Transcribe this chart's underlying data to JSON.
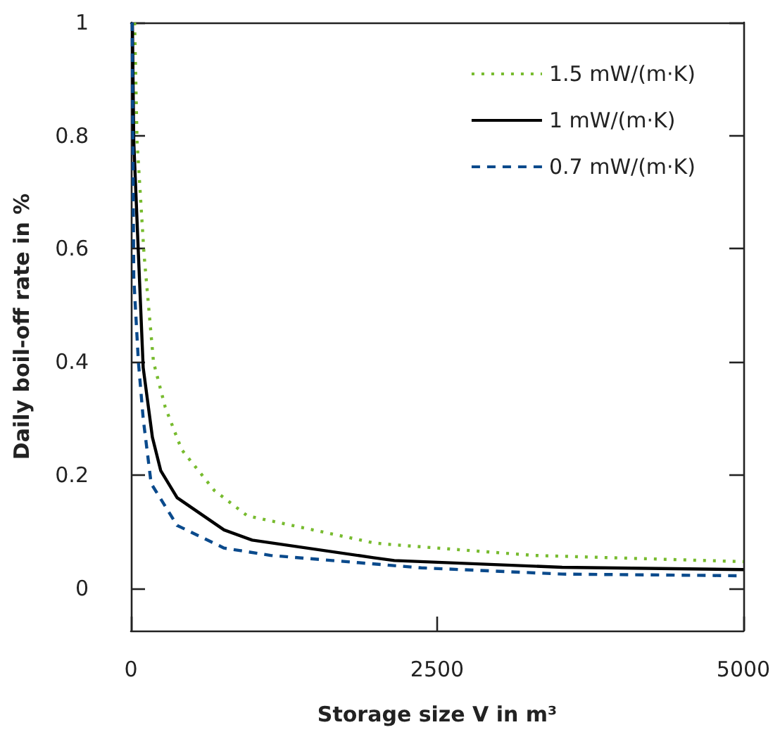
{
  "chart_data": {
    "type": "line",
    "xlabel": "Storage size V in m³",
    "ylabel": "Daily boil-off rate in %",
    "xlim": [
      0,
      5000
    ],
    "xticks": [
      0,
      2500,
      5000
    ],
    "ylim": [
      -0.075,
      1
    ],
    "yticks": [
      0,
      0.2,
      0.4,
      0.6,
      0.8,
      1
    ],
    "grid": false,
    "legend": "top right",
    "marker": "none",
    "series": [
      {
        "name": "1.5 mW/(m·K)",
        "color": "#77bb2e",
        "line_style": "dotted",
        "x": [
          30,
          50,
          107,
          184,
          280,
          414,
          680,
          950,
          1985,
          2140,
          3290,
          5000
        ],
        "values": [
          1.0,
          0.79,
          0.59,
          0.4,
          0.32,
          0.245,
          0.173,
          0.128,
          0.08,
          0.077,
          0.058,
          0.047
        ]
      },
      {
        "name": "1 mW/(m·K)",
        "color": "#000000",
        "line_style": "solid",
        "x": [
          12,
          23,
          60,
          100,
          175,
          243,
          377,
          760,
          990,
          1980,
          2150,
          3520,
          5000
        ],
        "values": [
          1.0,
          0.79,
          0.596,
          0.39,
          0.267,
          0.208,
          0.16,
          0.103,
          0.085,
          0.054,
          0.049,
          0.037,
          0.033
        ]
      },
      {
        "name": "0.7 mW/(m·K)",
        "color": "#0a4a8c",
        "line_style": "dashed",
        "x": [
          10,
          23,
          61,
          100,
          165,
          377,
          760,
          1140,
          2370,
          3520,
          5000
        ],
        "values": [
          1.0,
          0.55,
          0.4,
          0.3,
          0.185,
          0.111,
          0.071,
          0.058,
          0.036,
          0.025,
          0.022
        ]
      }
    ]
  }
}
